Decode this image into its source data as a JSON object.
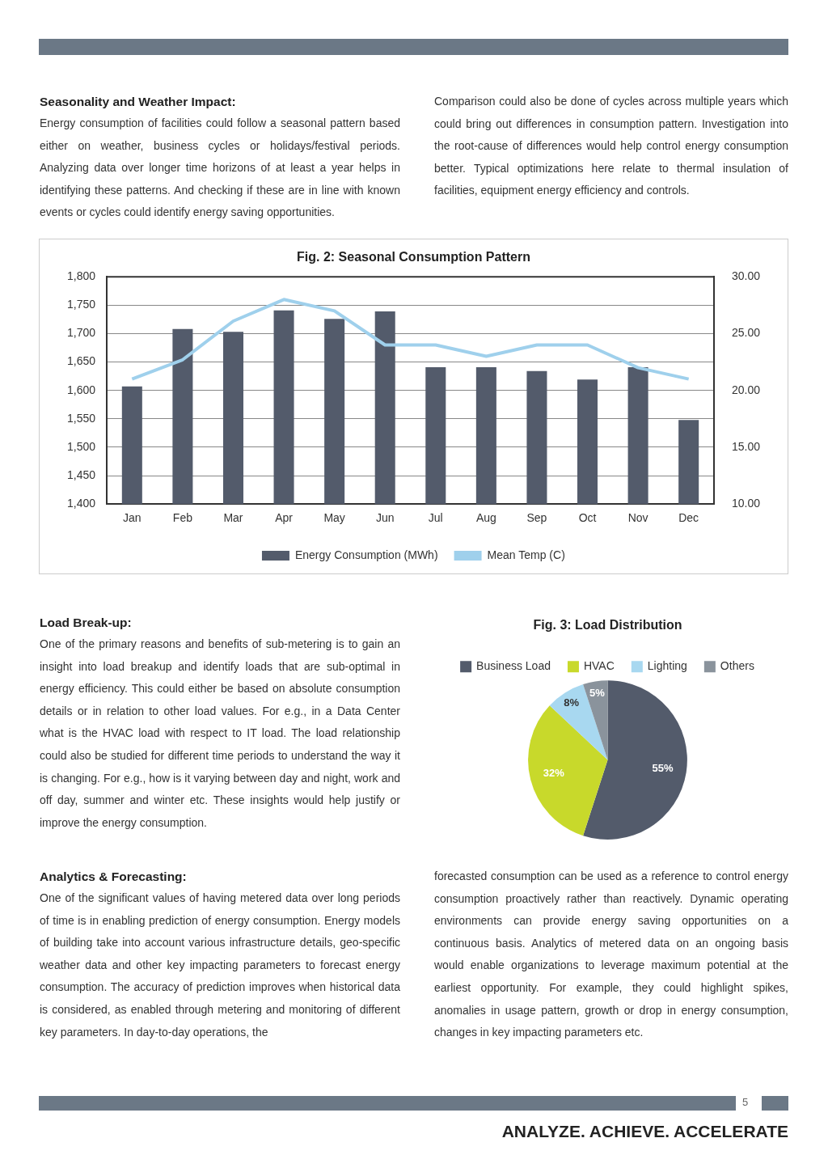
{
  "chart_data": [
    {
      "type": "other",
      "title": "Seasonality and Weather Impact:",
      "annotations": [
        "Energy consumption of facilities could follow a seasonal pattern based either on weather, business cycles or holidays/festival periods. Analyzing data over longer time horizons of at least a year helps in identifying these patterns. And checking if these are in line with known events or cycles could identify energy saving opportunities.",
        "Comparison could also be done of cycles across multiple years which could bring out differences in consumption pattern. Investigation into the root-cause of differences would help control energy consumption better. Typical optimizations here relate to thermal insulation of facilities, equipment energy efficiency and controls."
      ]
    },
    {
      "type": "bar",
      "title": "Fig. 2: Seasonal Consumption Pattern",
      "categories": [
        "Jan",
        "Feb",
        "Mar",
        "Apr",
        "May",
        "Jun",
        "Jul",
        "Aug",
        "Sep",
        "Oct",
        "Nov",
        "Dec"
      ],
      "series": [
        {
          "name": "Energy Consumption (MWh)",
          "color": "#535b6b",
          "values": [
            1607,
            1708,
            1703,
            1741,
            1726,
            1739,
            1641,
            1641,
            1634,
            1619,
            1641,
            1548
          ]
        },
        {
          "type": "line",
          "name": "Mean Temp (C)",
          "color": "#9fd0ec",
          "axis": "y2",
          "values": [
            21,
            22.7,
            26.1,
            28,
            27,
            24,
            24,
            23,
            24,
            24,
            22,
            21
          ]
        }
      ],
      "ylim": [
        1400,
        1800
      ],
      "yticks": [
        {
          "value": 1400,
          "label": "1,400"
        },
        {
          "value": 1450,
          "label": "1,450"
        },
        {
          "value": 1500,
          "label": "1,500"
        },
        {
          "value": 1550,
          "label": "1,550"
        },
        {
          "value": 1600,
          "label": "1,600"
        },
        {
          "value": 1650,
          "label": "1,650"
        },
        {
          "value": 1700,
          "label": "1,700"
        },
        {
          "value": 1750,
          "label": "1,750"
        },
        {
          "value": 1800,
          "label": "1,800"
        }
      ],
      "y2lim": [
        10,
        30
      ],
      "y2ticks": [
        {
          "value": 10,
          "label": "10.00"
        },
        {
          "value": 15,
          "label": "15.00"
        },
        {
          "value": 20,
          "label": "20.00"
        },
        {
          "value": 25,
          "label": "25.00"
        },
        {
          "value": 30,
          "label": "30.00"
        }
      ],
      "grid": "y",
      "legend": "bottom"
    },
    {
      "type": "other",
      "title": "Load Break-up:",
      "annotations": [
        "One of the primary reasons and benefits of sub-metering is to gain an insight into load breakup and identify loads that are sub-optimal in energy efficiency. This could either be based on absolute consumption details or in relation to other load values. For e.g., in a Data Center what is the HVAC load with respect to IT load. The load relationship could also be studied for different time periods to understand the way it is changing. For e.g., how is it varying between day and night, work and off day, summer and winter etc. These insights would help justify or improve the energy consumption."
      ]
    },
    {
      "type": "pie",
      "title": "Fig. 3: Load Distribution",
      "categories": [
        "Business Load",
        "HVAC",
        "Lighting",
        "Others"
      ],
      "values": [
        55,
        32,
        8,
        5
      ],
      "colors": [
        "#535b6b",
        "#c8d92b",
        "#a8d8f0",
        "#8a939c"
      ],
      "value_labels": [
        "55%",
        "32%",
        "8%",
        "5%"
      ],
      "legend": "top"
    },
    {
      "type": "other",
      "title": "Analytics & Forecasting:",
      "annotations": [
        "One of the significant values of having metered data over long periods of time is in enabling prediction of energy consumption. Energy models of building take into account various infrastructure details, geo-specific weather data and other key impacting parameters to forecast energy consumption. The accuracy of prediction improves when historical data is considered, as enabled through metering and monitoring of different key parameters. In day-to-day operations, the",
        "forecasted consumption can be used as a reference to control energy consumption proactively rather than reactively. Dynamic operating environments can provide energy saving opportunities on a continuous basis. Analytics of metered data on an ongoing basis would enable organizations to leverage maximum potential at the earliest opportunity. For example, they could highlight spikes, anomalies in usage pattern, growth or drop in energy consumption, changes in key impacting parameters etc."
      ]
    },
    {
      "type": "other",
      "annotations": [
        "5",
        "ANALYZE. ACHIEVE. ACCELERATE"
      ]
    }
  ]
}
